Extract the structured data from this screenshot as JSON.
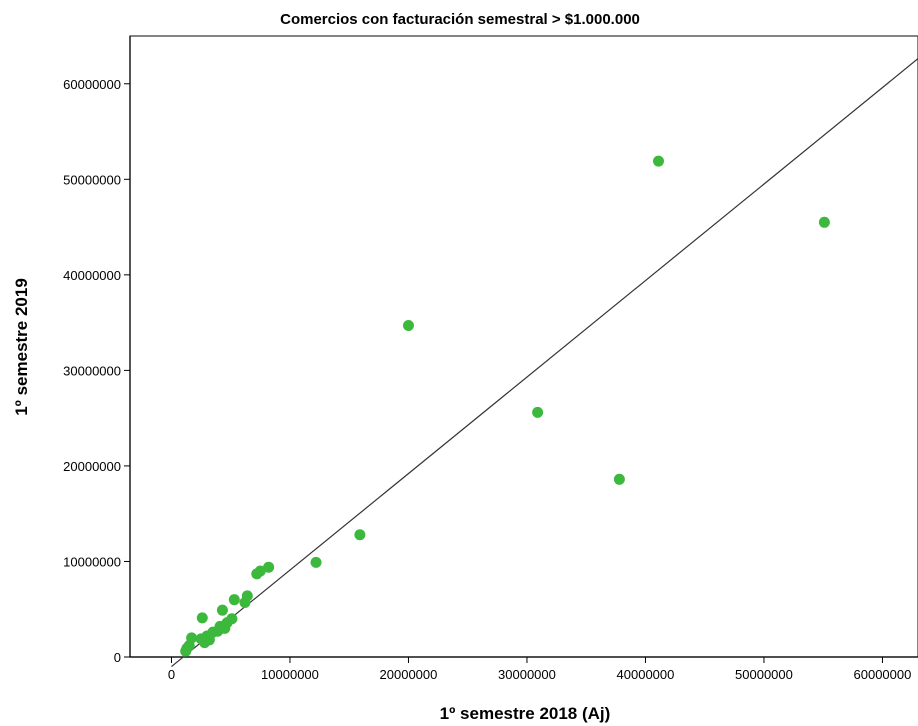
{
  "chart_data": {
    "type": "scatter",
    "title": "Comercios con facturación semestral > $1.000.000",
    "xlabel": "1º semestre 2018 (Aj)",
    "ylabel": "1º semestre 2019",
    "xlim": [
      -3500000,
      63000000
    ],
    "ylim": [
      0,
      65000000
    ],
    "x_ticks": [
      0,
      10000000,
      20000000,
      30000000,
      40000000,
      50000000,
      60000000
    ],
    "x_tick_labels": [
      "0",
      "10000000",
      "20000000",
      "30000000",
      "40000000",
      "50000000",
      "60000000"
    ],
    "y_ticks": [
      0,
      10000000,
      20000000,
      30000000,
      40000000,
      50000000,
      60000000
    ],
    "y_tick_labels": [
      "0",
      "10000000",
      "20000000",
      "30000000",
      "40000000",
      "50000000",
      "60000000"
    ],
    "grid": false,
    "legend": "none",
    "marker_color": "#3cb83c",
    "fit_line_color": "#333333",
    "points": [
      {
        "x": 1200000,
        "y": 600000
      },
      {
        "x": 1300000,
        "y": 900000
      },
      {
        "x": 1500000,
        "y": 1200000
      },
      {
        "x": 1700000,
        "y": 2000000
      },
      {
        "x": 2500000,
        "y": 1900000
      },
      {
        "x": 2600000,
        "y": 4100000
      },
      {
        "x": 2800000,
        "y": 1500000
      },
      {
        "x": 3000000,
        "y": 2200000
      },
      {
        "x": 3200000,
        "y": 1800000
      },
      {
        "x": 3500000,
        "y": 2600000
      },
      {
        "x": 3900000,
        "y": 2700000
      },
      {
        "x": 4100000,
        "y": 3200000
      },
      {
        "x": 4300000,
        "y": 4900000
      },
      {
        "x": 4500000,
        "y": 3000000
      },
      {
        "x": 4700000,
        "y": 3600000
      },
      {
        "x": 5100000,
        "y": 4000000
      },
      {
        "x": 5300000,
        "y": 6000000
      },
      {
        "x": 6200000,
        "y": 5700000
      },
      {
        "x": 6400000,
        "y": 6400000
      },
      {
        "x": 7200000,
        "y": 8700000
      },
      {
        "x": 7500000,
        "y": 9000000
      },
      {
        "x": 8200000,
        "y": 9400000
      },
      {
        "x": 12200000,
        "y": 9900000
      },
      {
        "x": 15900000,
        "y": 12800000
      },
      {
        "x": 20000000,
        "y": 34700000
      },
      {
        "x": 30900000,
        "y": 25600000
      },
      {
        "x": 37800000,
        "y": 18600000
      },
      {
        "x": 41100000,
        "y": 51900000
      },
      {
        "x": 55100000,
        "y": 45500000
      }
    ],
    "fit_line": {
      "slope": 1.01,
      "intercept": -1000000
    }
  }
}
